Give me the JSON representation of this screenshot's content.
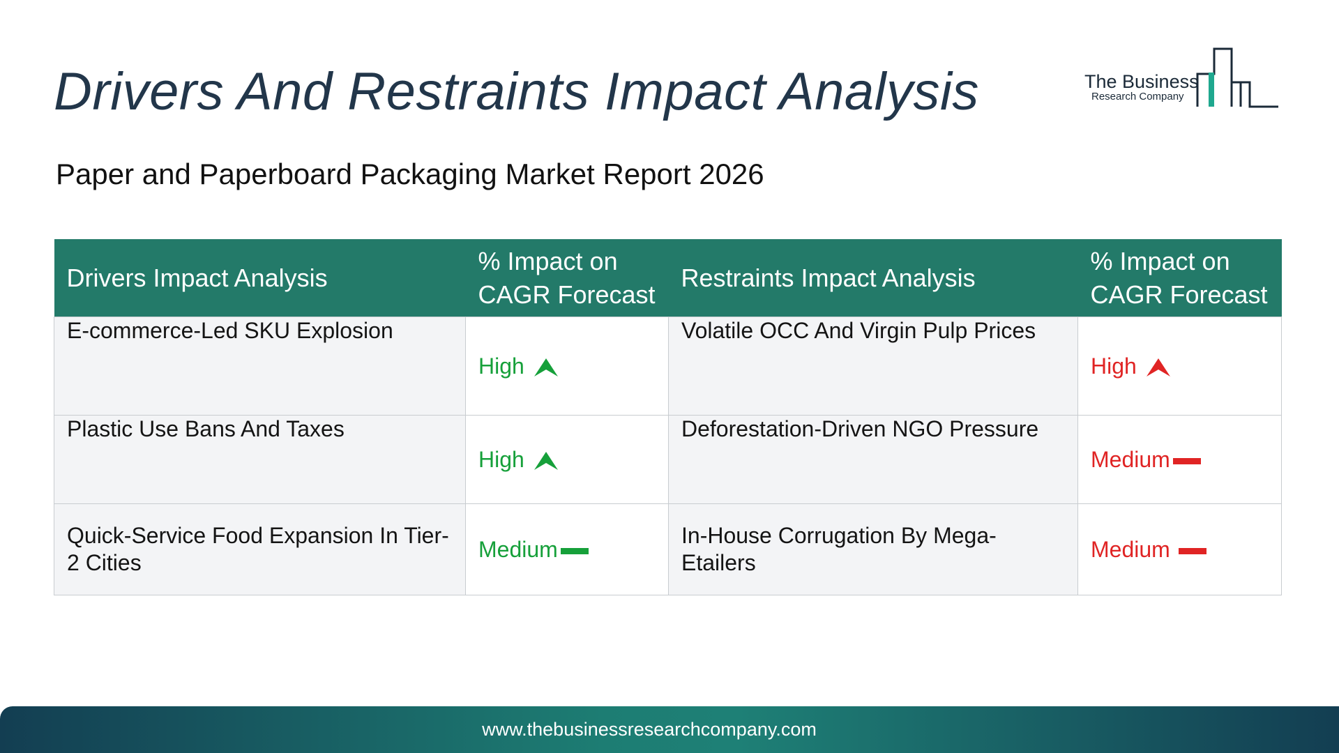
{
  "header": {
    "title": "Drivers And Restraints Impact Analysis",
    "subtitle": "Paper and Paperboard Packaging Market Report 2026"
  },
  "logo": {
    "line1": "The Business",
    "line2": "Research Company"
  },
  "table": {
    "columns": [
      "Drivers Impact Analysis",
      "% Impact on CAGR Forecast",
      "Restraints Impact Analysis",
      "% Impact on CAGR Forecast"
    ],
    "rows": [
      {
        "driver": "E-commerce-Led SKU Explosion",
        "driver_impact": "High",
        "driver_icon": "up-arrow-icon",
        "restraint": "Volatile OCC And Virgin Pulp Prices",
        "restraint_impact": "High",
        "restraint_icon": "up-arrow-icon"
      },
      {
        "driver": "Plastic Use Bans And Taxes",
        "driver_impact": "High",
        "driver_icon": "up-arrow-icon",
        "restraint": "Deforestation-Driven NGO Pressure",
        "restraint_impact": "Medium",
        "restraint_icon": "dash-icon"
      },
      {
        "driver": "Quick-Service Food Expansion In Tier-2 Cities",
        "driver_impact": "Medium",
        "driver_icon": "dash-icon",
        "restraint": "In-House Corrugation By Mega-Etailers",
        "restraint_impact": "Medium",
        "restraint_icon": "dash-icon"
      }
    ]
  },
  "colors": {
    "header_bg": "#237a69",
    "driver_impact": "#16a03a",
    "restraint_impact": "#e02424",
    "title": "#22364a"
  },
  "footer": {
    "url": "www.thebusinessresearchcompany.com"
  }
}
